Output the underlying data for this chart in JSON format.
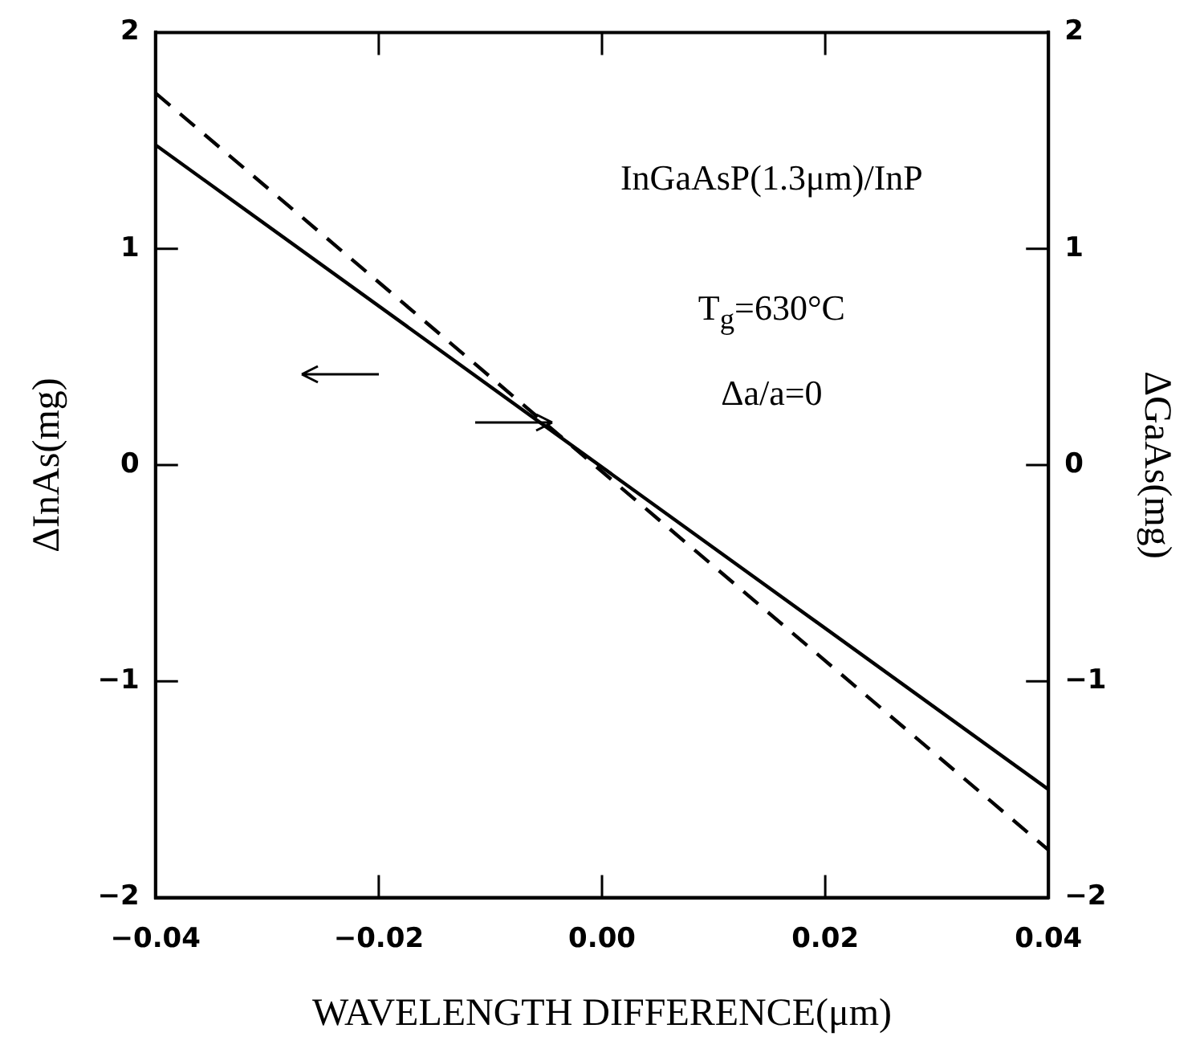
{
  "chart_data": {
    "type": "line",
    "xlabel": "WAVELENGTH DIFFERENCE(μm)",
    "ylabel": "ΔInAs(mg)",
    "y2label": "ΔGaAs(mg)",
    "annotations": [
      "InGaAsP(1.3μm)/InP",
      "T$_{g}$=630°C",
      "Δa/a=0"
    ],
    "x": [
      -0.04,
      0.04
    ],
    "series": [
      {
        "color": "#000000",
        "values": [
          1.48,
          -1.5
        ],
        "line_style": "solid"
      },
      {
        "color": "#000000",
        "values": [
          1.72,
          -1.78
        ],
        "line_style": "dashed",
        "axis": "y2"
      }
    ],
    "xlim": [
      -0.04,
      0.04
    ],
    "xticks": [
      {
        "value": -0.04,
        "label": "−0.04"
      },
      {
        "value": -0.02,
        "label": "−0.02"
      },
      {
        "value": 0,
        "label": "0.00"
      },
      {
        "value": 0.02,
        "label": "0.02"
      },
      {
        "value": 0.04,
        "label": "0.04"
      }
    ],
    "ylim": [
      -2,
      2
    ],
    "yticks": [
      {
        "value": -2,
        "label": "−2"
      },
      {
        "value": -1,
        "label": "−1"
      },
      0,
      1,
      2
    ],
    "y2lim": [
      -2,
      2
    ],
    "y2ticks": [
      {
        "value": -2,
        "label": "−2"
      },
      {
        "value": -1,
        "label": "−1"
      },
      0,
      1,
      2
    ],
    "grid": false,
    "legend": false,
    "marker": "none"
  }
}
